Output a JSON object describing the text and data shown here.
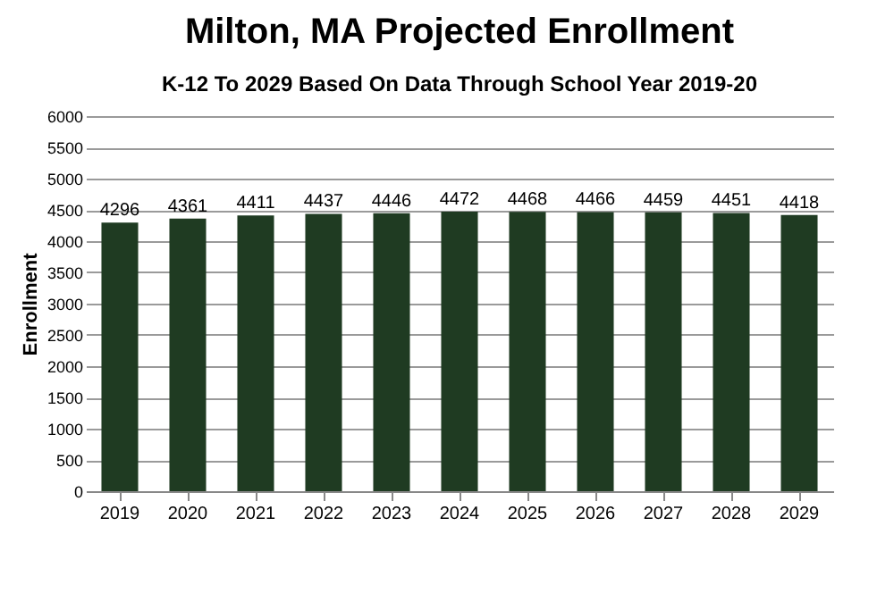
{
  "chart_data": {
    "type": "bar",
    "title": "Milton, MA Projected Enrollment",
    "subtitle": "K-12 To 2029 Based On Data Through School Year 2019-20",
    "ylabel": "Enrollment",
    "categories": [
      "2019",
      "2020",
      "2021",
      "2022",
      "2023",
      "2024",
      "2025",
      "2026",
      "2027",
      "2028",
      "2029"
    ],
    "values": [
      4296,
      4361,
      4411,
      4437,
      4446,
      4472,
      4468,
      4466,
      4459,
      4451,
      4418
    ],
    "color": "#1f3b22",
    "ylim": [
      0,
      6000
    ],
    "yticks": [
      0,
      500,
      1000,
      1500,
      2000,
      2500,
      3000,
      3500,
      4000,
      4500,
      5000,
      5500,
      6000
    ],
    "grid": "y",
    "data_labels": true
  }
}
